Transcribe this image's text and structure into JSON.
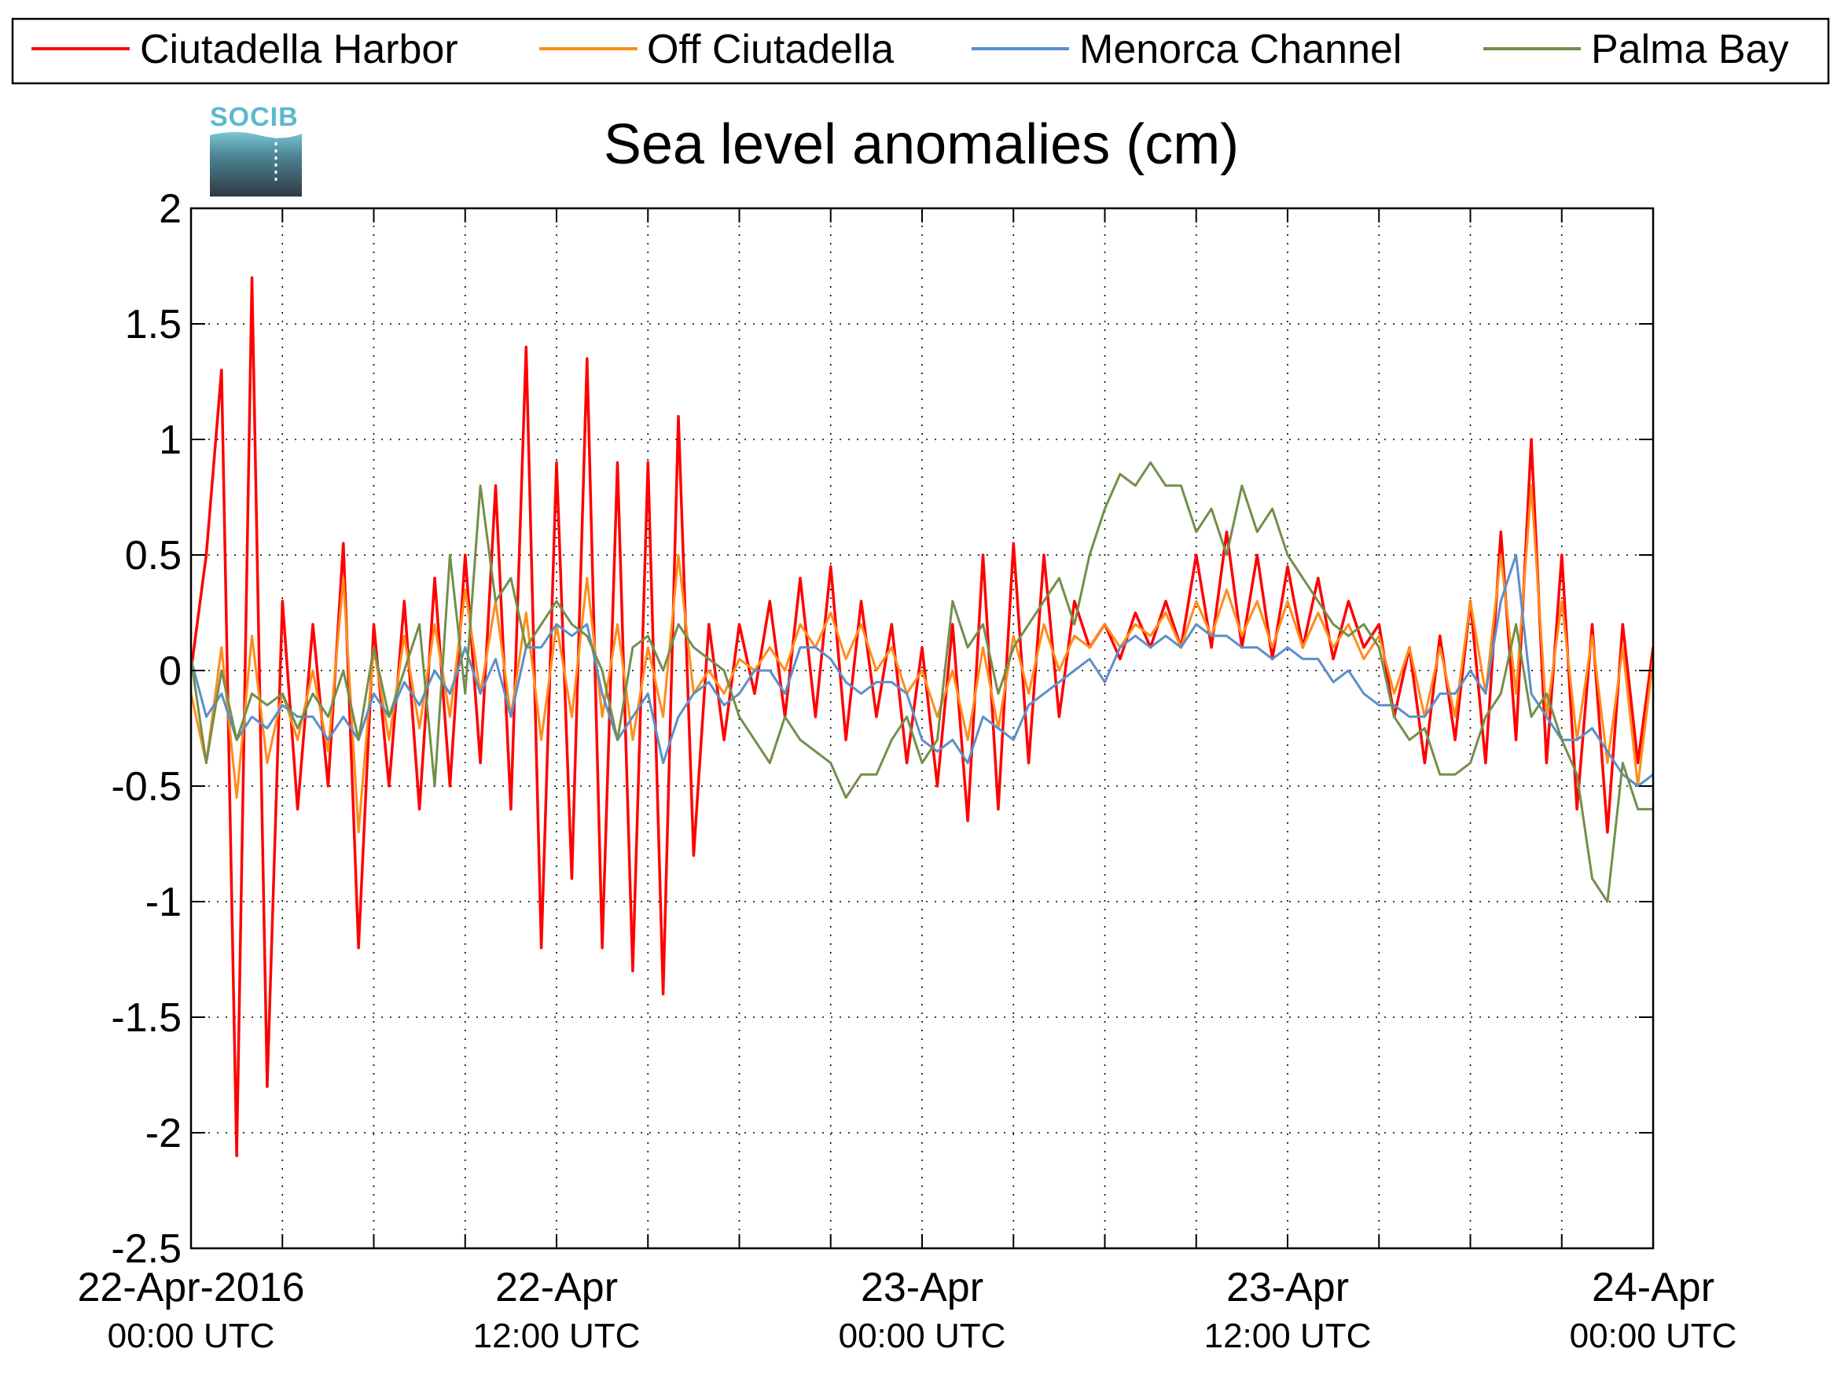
{
  "chart_data": {
    "type": "line",
    "title": "Sea level anomalies (cm)",
    "logo": "SOCIB",
    "x_range_hours": [
      0,
      48
    ],
    "ylim": [
      -2.5,
      2
    ],
    "y_ticks": [
      2,
      1.5,
      1,
      0.5,
      0,
      -0.5,
      -1,
      -1.5,
      -2,
      -2.5
    ],
    "y_tick_labels": [
      "2",
      "1.5",
      "1",
      "0.5",
      "0",
      "-0.5",
      "-1",
      "-1.5",
      "-2",
      "-2.5"
    ],
    "x_ticks_hours": [
      0,
      3,
      6,
      9,
      12,
      15,
      18,
      21,
      24,
      27,
      30,
      33,
      36,
      39,
      42,
      45,
      48
    ],
    "x_tick_labels": [
      {
        "hour": 0,
        "date": "22-Apr-2016",
        "time": "00:00 UTC"
      },
      {
        "hour": 12,
        "date": "22-Apr",
        "time": "12:00 UTC"
      },
      {
        "hour": 24,
        "date": "23-Apr",
        "time": "00:00 UTC"
      },
      {
        "hour": 36,
        "date": "23-Apr",
        "time": "12:00 UTC"
      },
      {
        "hour": 48,
        "date": "24-Apr",
        "time": "00:00 UTC"
      }
    ],
    "grid": true,
    "legend_position": "top",
    "series": [
      {
        "name": "Ciutadella Harbor",
        "color": "#ff0000",
        "x": [
          0,
          0.5,
          1,
          1.5,
          2,
          2.5,
          3,
          3.5,
          4,
          4.5,
          5,
          5.5,
          6,
          6.5,
          7,
          7.5,
          8,
          8.5,
          9,
          9.5,
          10,
          10.5,
          11,
          11.5,
          12,
          12.5,
          13,
          13.5,
          14,
          14.5,
          15,
          15.5,
          16,
          16.5,
          17,
          17.5,
          18,
          18.5,
          19,
          19.5,
          20,
          20.5,
          21,
          21.5,
          22,
          22.5,
          23,
          23.5,
          24,
          24.5,
          25,
          25.5,
          26,
          26.5,
          27,
          27.5,
          28,
          28.5,
          29,
          29.5,
          30,
          30.5,
          31,
          31.5,
          32,
          32.5,
          33,
          33.5,
          34,
          34.5,
          35,
          35.5,
          36,
          36.5,
          37,
          37.5,
          38,
          38.5,
          39,
          39.5,
          40,
          40.5,
          41,
          41.5,
          42,
          42.5,
          43,
          43.5,
          44,
          44.5,
          45,
          45.5,
          46,
          46.5,
          47,
          47.5,
          48
        ],
        "y": [
          0,
          0.5,
          1.3,
          -2.1,
          1.7,
          -1.8,
          0.3,
          -0.6,
          0.2,
          -0.5,
          0.55,
          -1.2,
          0.2,
          -0.5,
          0.3,
          -0.6,
          0.4,
          -0.5,
          0.5,
          -0.4,
          0.8,
          -0.6,
          1.4,
          -1.2,
          0.9,
          -0.9,
          1.35,
          -1.2,
          0.9,
          -1.3,
          0.9,
          -1.4,
          1.1,
          -0.8,
          0.2,
          -0.3,
          0.2,
          -0.1,
          0.3,
          -0.2,
          0.4,
          -0.2,
          0.45,
          -0.3,
          0.3,
          -0.2,
          0.2,
          -0.4,
          0.1,
          -0.5,
          0.2,
          -0.65,
          0.5,
          -0.6,
          0.55,
          -0.4,
          0.5,
          -0.2,
          0.3,
          0.1,
          0.2,
          0.05,
          0.25,
          0.1,
          0.3,
          0.1,
          0.5,
          0.1,
          0.6,
          0.1,
          0.5,
          0.05,
          0.45,
          0.1,
          0.4,
          0.05,
          0.3,
          0.1,
          0.2,
          -0.2,
          0.1,
          -0.4,
          0.15,
          -0.3,
          0.3,
          -0.4,
          0.6,
          -0.3,
          1.0,
          -0.4,
          0.5,
          -0.6,
          0.2,
          -0.7,
          0.2,
          -0.4,
          0.1
        ]
      },
      {
        "name": "Off Ciutadella",
        "color": "#ff8c1a",
        "x": [
          0,
          0.5,
          1,
          1.5,
          2,
          2.5,
          3,
          3.5,
          4,
          4.5,
          5,
          5.5,
          6,
          6.5,
          7,
          7.5,
          8,
          8.5,
          9,
          9.5,
          10,
          10.5,
          11,
          11.5,
          12,
          12.5,
          13,
          13.5,
          14,
          14.5,
          15,
          15.5,
          16,
          16.5,
          17,
          17.5,
          18,
          18.5,
          19,
          19.5,
          20,
          20.5,
          21,
          21.5,
          22,
          22.5,
          23,
          23.5,
          24,
          24.5,
          25,
          25.5,
          26,
          26.5,
          27,
          27.5,
          28,
          28.5,
          29,
          29.5,
          30,
          30.5,
          31,
          31.5,
          32,
          32.5,
          33,
          33.5,
          34,
          34.5,
          35,
          35.5,
          36,
          36.5,
          37,
          37.5,
          38,
          38.5,
          39,
          39.5,
          40,
          40.5,
          41,
          41.5,
          42,
          42.5,
          43,
          43.5,
          44,
          44.5,
          45,
          45.5,
          46,
          46.5,
          47,
          47.5,
          48
        ],
        "y": [
          -0.1,
          -0.4,
          0.1,
          -0.55,
          0.15,
          -0.4,
          -0.1,
          -0.3,
          0.0,
          -0.35,
          0.4,
          -0.7,
          0.1,
          -0.3,
          0.15,
          -0.25,
          0.2,
          -0.2,
          0.35,
          -0.1,
          0.3,
          -0.2,
          0.25,
          -0.3,
          0.2,
          -0.2,
          0.4,
          -0.2,
          0.2,
          -0.3,
          0.1,
          -0.2,
          0.5,
          -0.1,
          0.0,
          -0.1,
          0.05,
          0.0,
          0.1,
          0.0,
          0.2,
          0.1,
          0.25,
          0.05,
          0.2,
          0.0,
          0.1,
          -0.1,
          0.0,
          -0.2,
          0.0,
          -0.3,
          0.1,
          -0.25,
          0.15,
          -0.1,
          0.2,
          0.0,
          0.15,
          0.1,
          0.2,
          0.1,
          0.2,
          0.15,
          0.25,
          0.1,
          0.3,
          0.15,
          0.35,
          0.15,
          0.3,
          0.1,
          0.3,
          0.1,
          0.25,
          0.1,
          0.2,
          0.05,
          0.15,
          -0.1,
          0.1,
          -0.2,
          0.1,
          -0.2,
          0.3,
          -0.1,
          0.5,
          -0.1,
          0.8,
          -0.2,
          0.3,
          -0.3,
          0.15,
          -0.4,
          0.1,
          -0.5,
          0.05
        ]
      },
      {
        "name": "Menorca Channel",
        "color": "#5b8fc9",
        "x": [
          0,
          0.5,
          1,
          1.5,
          2,
          2.5,
          3,
          3.5,
          4,
          4.5,
          5,
          5.5,
          6,
          6.5,
          7,
          7.5,
          8,
          8.5,
          9,
          9.5,
          10,
          10.5,
          11,
          11.5,
          12,
          12.5,
          13,
          13.5,
          14,
          14.5,
          15,
          15.5,
          16,
          16.5,
          17,
          17.5,
          18,
          18.5,
          19,
          19.5,
          20,
          20.5,
          21,
          21.5,
          22,
          22.5,
          23,
          23.5,
          24,
          24.5,
          25,
          25.5,
          26,
          26.5,
          27,
          27.5,
          28,
          28.5,
          29,
          29.5,
          30,
          30.5,
          31,
          31.5,
          32,
          32.5,
          33,
          33.5,
          34,
          34.5,
          35,
          35.5,
          36,
          36.5,
          37,
          37.5,
          38,
          38.5,
          39,
          39.5,
          40,
          40.5,
          41,
          41.5,
          42,
          42.5,
          43,
          43.5,
          44,
          44.5,
          45,
          45.5,
          46,
          46.5,
          47,
          47.5,
          48
        ],
        "y": [
          0.05,
          -0.2,
          -0.1,
          -0.3,
          -0.2,
          -0.25,
          -0.15,
          -0.2,
          -0.2,
          -0.3,
          -0.2,
          -0.3,
          -0.1,
          -0.2,
          -0.05,
          -0.15,
          0.0,
          -0.1,
          0.1,
          -0.1,
          0.05,
          -0.2,
          0.1,
          0.1,
          0.2,
          0.15,
          0.2,
          -0.1,
          -0.3,
          -0.2,
          -0.1,
          -0.4,
          -0.2,
          -0.1,
          -0.05,
          -0.15,
          -0.1,
          0.0,
          0.0,
          -0.1,
          0.1,
          0.1,
          0.05,
          -0.05,
          -0.1,
          -0.05,
          -0.05,
          -0.1,
          -0.3,
          -0.35,
          -0.3,
          -0.4,
          -0.2,
          -0.25,
          -0.3,
          -0.15,
          -0.1,
          -0.05,
          0.0,
          0.05,
          -0.05,
          0.1,
          0.15,
          0.1,
          0.15,
          0.1,
          0.2,
          0.15,
          0.15,
          0.1,
          0.1,
          0.05,
          0.1,
          0.05,
          0.05,
          -0.05,
          0.0,
          -0.1,
          -0.15,
          -0.15,
          -0.2,
          -0.2,
          -0.1,
          -0.1,
          0.0,
          -0.1,
          0.3,
          0.5,
          -0.1,
          -0.2,
          -0.3,
          -0.3,
          -0.25,
          -0.35,
          -0.45,
          -0.5,
          -0.45
        ]
      },
      {
        "name": "Palma Bay",
        "color": "#728f4a",
        "x": [
          0,
          0.5,
          1,
          1.5,
          2,
          2.5,
          3,
          3.5,
          4,
          4.5,
          5,
          5.5,
          6,
          6.5,
          7,
          7.5,
          8,
          8.5,
          9,
          9.5,
          10,
          10.5,
          11,
          11.5,
          12,
          12.5,
          13,
          13.5,
          14,
          14.5,
          15,
          15.5,
          16,
          16.5,
          17,
          17.5,
          18,
          18.5,
          19,
          19.5,
          20,
          20.5,
          21,
          21.5,
          22,
          22.5,
          23,
          23.5,
          24,
          24.5,
          25,
          25.5,
          26,
          26.5,
          27,
          27.5,
          28,
          28.5,
          29,
          29.5,
          30,
          30.5,
          31,
          31.5,
          32,
          32.5,
          33,
          33.5,
          34,
          34.5,
          35,
          35.5,
          36,
          36.5,
          37,
          37.5,
          38,
          38.5,
          39,
          39.5,
          40,
          40.5,
          41,
          41.5,
          42,
          42.5,
          43,
          43.5,
          44,
          44.5,
          45,
          45.5,
          46,
          46.5,
          47,
          47.5,
          48
        ],
        "y": [
          0.05,
          -0.4,
          0.0,
          -0.3,
          -0.1,
          -0.15,
          -0.1,
          -0.25,
          -0.1,
          -0.2,
          0.0,
          -0.3,
          0.1,
          -0.2,
          0.0,
          0.2,
          -0.5,
          0.5,
          -0.1,
          0.8,
          0.3,
          0.4,
          0.1,
          0.2,
          0.3,
          0.2,
          0.15,
          0.0,
          -0.3,
          0.1,
          0.15,
          0.0,
          0.2,
          0.1,
          0.05,
          0.0,
          -0.2,
          -0.3,
          -0.4,
          -0.2,
          -0.3,
          -0.35,
          -0.4,
          -0.55,
          -0.45,
          -0.45,
          -0.3,
          -0.2,
          -0.4,
          -0.3,
          0.3,
          0.1,
          0.2,
          -0.1,
          0.1,
          0.2,
          0.3,
          0.4,
          0.2,
          0.5,
          0.7,
          0.85,
          0.8,
          0.9,
          0.8,
          0.8,
          0.6,
          0.7,
          0.5,
          0.8,
          0.6,
          0.7,
          0.5,
          0.4,
          0.3,
          0.2,
          0.15,
          0.2,
          0.1,
          -0.2,
          -0.3,
          -0.25,
          -0.45,
          -0.45,
          -0.4,
          -0.2,
          -0.1,
          0.2,
          -0.2,
          -0.1,
          -0.3,
          -0.45,
          -0.9,
          -1.0,
          -0.4,
          -0.6,
          -0.6
        ]
      }
    ]
  }
}
